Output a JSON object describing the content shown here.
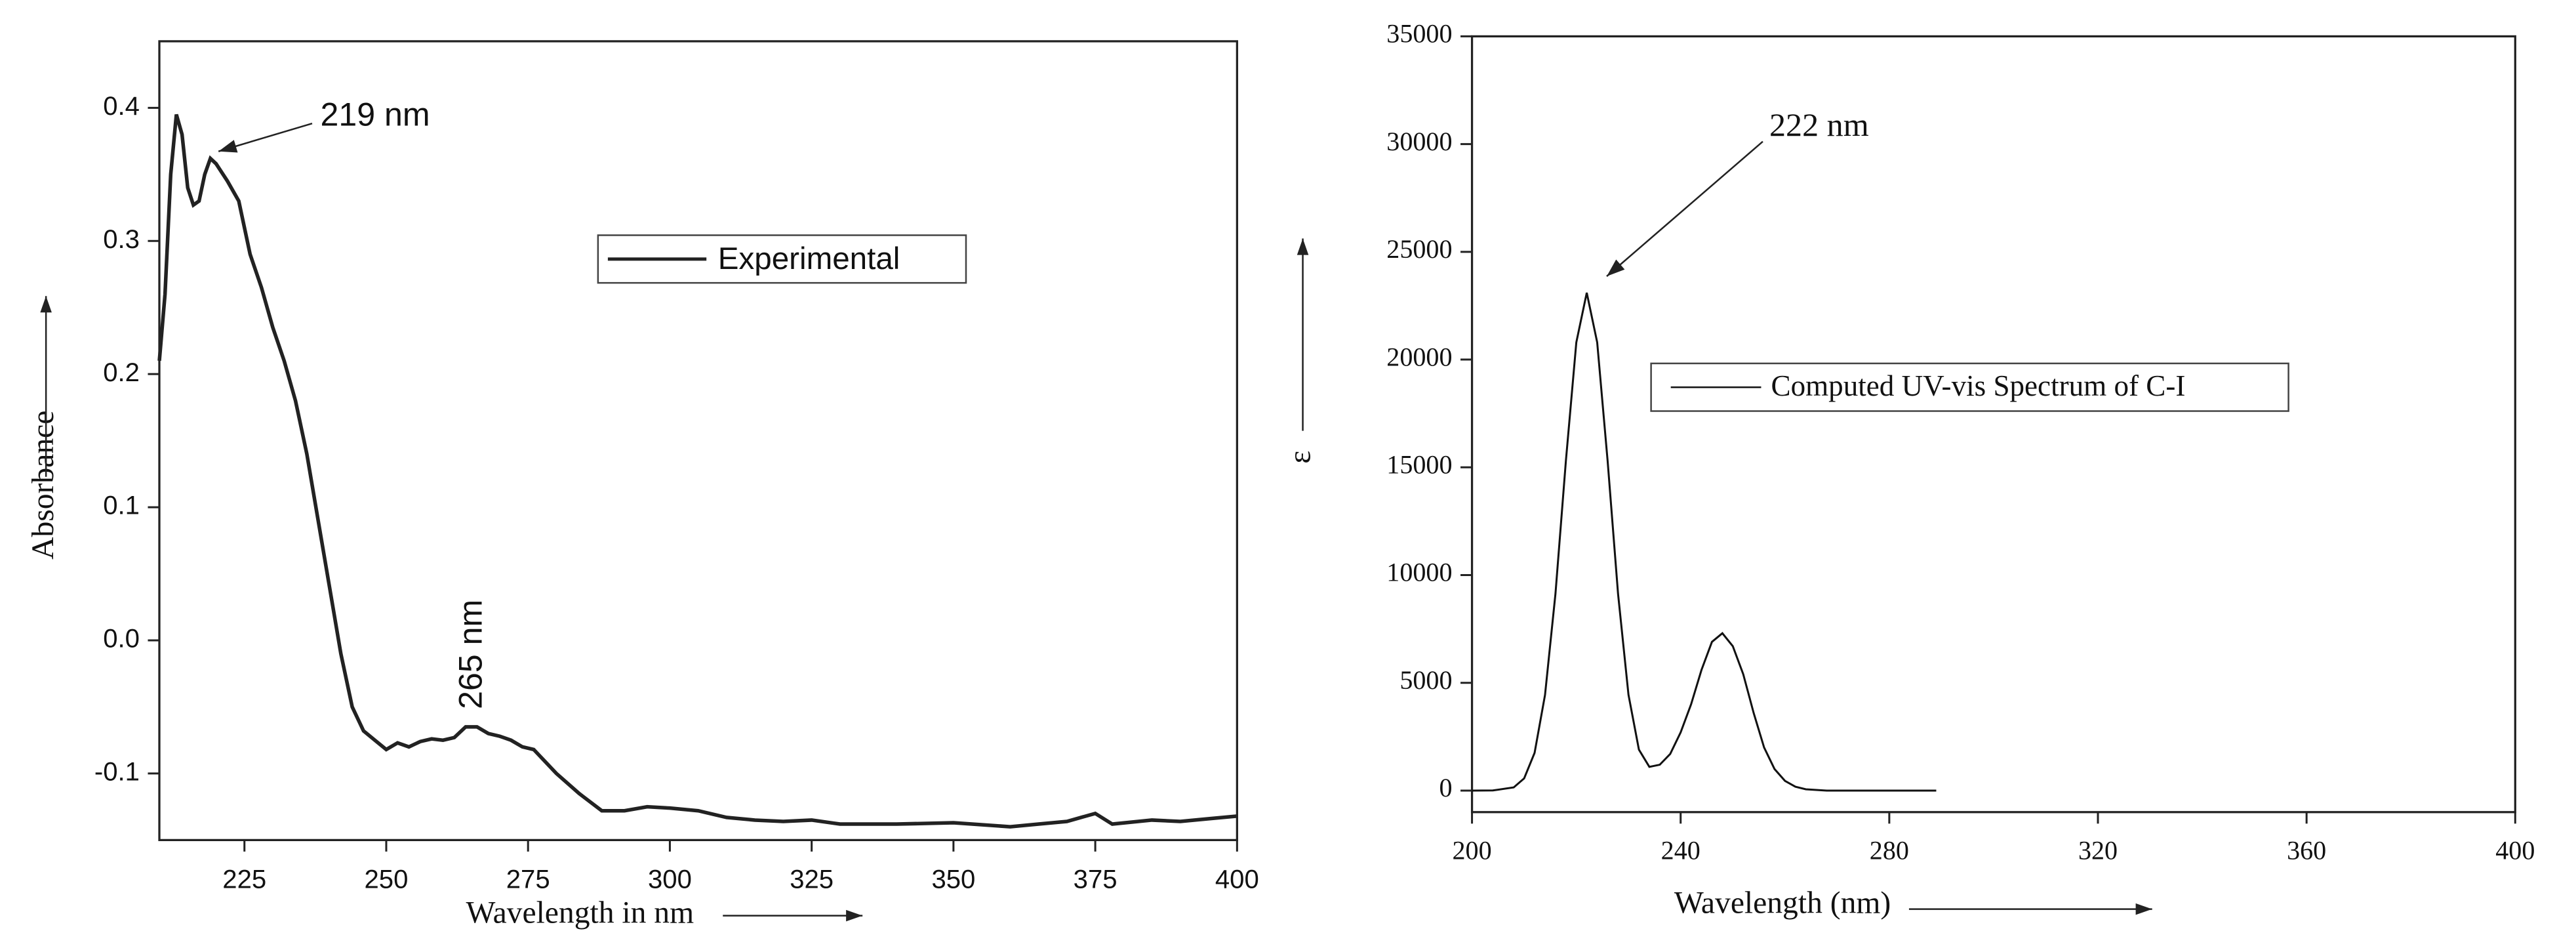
{
  "chart_data": [
    {
      "type": "line",
      "xlabel": "Wavelength in nm",
      "ylabel": "Absorbance",
      "xlim": [
        210,
        400
      ],
      "ylim": [
        -0.15,
        0.45
      ],
      "xticks": [
        225,
        250,
        275,
        300,
        325,
        350,
        375,
        400
      ],
      "yticks": [
        -0.1,
        {
          "value": 0,
          "label": "0.0"
        },
        0.1,
        0.2,
        0.3,
        0.4
      ],
      "legend": "inside",
      "annotations": [
        "219 nm",
        "265 nm"
      ],
      "x": [
        210,
        211,
        212,
        213,
        214,
        215,
        216,
        217,
        218,
        219,
        220,
        222,
        224,
        226,
        228,
        230,
        232,
        234,
        236,
        238,
        240,
        242,
        244,
        246,
        248,
        250,
        252,
        254,
        256,
        258,
        260,
        262,
        264,
        266,
        268,
        270,
        272,
        274,
        276,
        280,
        284,
        288,
        292,
        296,
        300,
        305,
        310,
        315,
        320,
        325,
        330,
        340,
        350,
        360,
        365,
        370,
        375,
        378,
        385,
        390,
        395,
        400
      ],
      "series": [
        {
          "name": "Experimental",
          "color": "#222222",
          "values": [
            0.21,
            0.26,
            0.35,
            0.395,
            0.38,
            0.34,
            0.327,
            0.33,
            0.35,
            0.362,
            0.358,
            0.345,
            0.33,
            0.29,
            0.265,
            0.235,
            0.21,
            0.18,
            0.14,
            0.09,
            0.04,
            -0.01,
            -0.05,
            -0.068,
            -0.075,
            -0.082,
            -0.077,
            -0.08,
            -0.076,
            -0.074,
            -0.075,
            -0.073,
            -0.065,
            -0.065,
            -0.07,
            -0.072,
            -0.075,
            -0.08,
            -0.082,
            -0.1,
            -0.115,
            -0.128,
            -0.128,
            -0.125,
            -0.126,
            -0.128,
            -0.133,
            -0.135,
            -0.136,
            -0.135,
            -0.138,
            -0.138,
            -0.137,
            -0.14,
            -0.138,
            -0.136,
            -0.13,
            -0.138,
            -0.135,
            -0.136,
            -0.134,
            -0.132
          ]
        }
      ]
    },
    {
      "type": "line",
      "xlabel": "Wavelength (nm)",
      "ylabel": "ε",
      "xlim": [
        200,
        400
      ],
      "ylim": [
        -1000,
        35000
      ],
      "xticks": [
        200,
        240,
        280,
        320,
        360,
        400
      ],
      "yticks": [
        0,
        5000,
        10000,
        15000,
        20000,
        25000,
        30000,
        35000
      ],
      "legend": "inside",
      "annotations": [
        "222 nm"
      ],
      "x": [
        200,
        204,
        208,
        210,
        212,
        214,
        216,
        218,
        220,
        222,
        224,
        226,
        228,
        230,
        232,
        234,
        236,
        238,
        240,
        242,
        244,
        246,
        248,
        250,
        252,
        254,
        256,
        258,
        260,
        262,
        264,
        268,
        289
      ],
      "series": [
        {
          "name": "Computed UV-vis Spectrum of C-I",
          "color": "#111111",
          "values": [
            0,
            5,
            148,
            566,
            1750,
            4440,
            9130,
            15300,
            20800,
            23100,
            20800,
            15300,
            9130,
            4445,
            1900,
            1100,
            1200,
            1700,
            2700,
            4000,
            5600,
            6900,
            7300,
            6700,
            5400,
            3600,
            2000,
            1000,
            450,
            180,
            60,
            0,
            0
          ]
        }
      ]
    }
  ]
}
